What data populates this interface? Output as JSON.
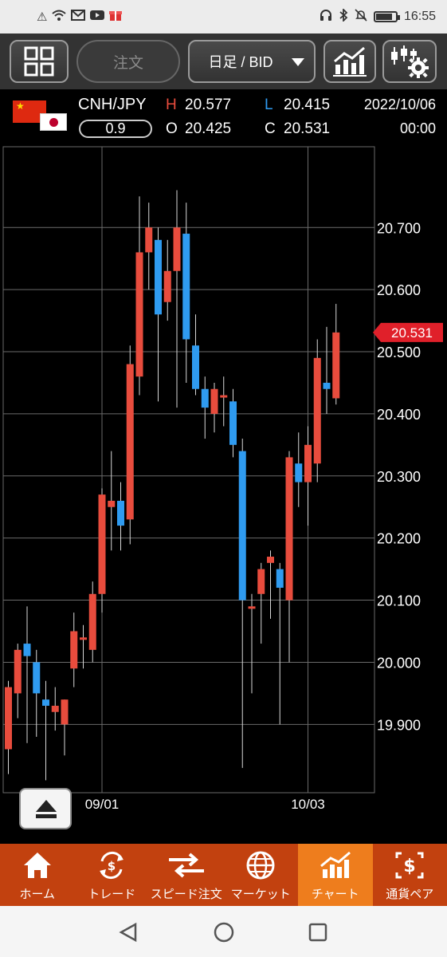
{
  "status_bar": {
    "time": "16:55",
    "left_icons": [
      "alert-icon",
      "wifi-icon",
      "gmail-icon",
      "youtube-icon",
      "gift-icon"
    ],
    "right_icons": [
      "headset-icon",
      "bluetooth-icon",
      "mute-icon",
      "battery-icon"
    ]
  },
  "toolbar": {
    "order_label": "注文",
    "timeframe_label": "日足 / BID"
  },
  "quote": {
    "pair": "CNH/JPY",
    "spread": "0.9",
    "high_label": "H",
    "high": "20.577",
    "low_label": "L",
    "low": "20.415",
    "open_label": "O",
    "open": "20.425",
    "close_label": "C",
    "close": "20.531",
    "date": "2022/10/06",
    "time": "00:00"
  },
  "colors": {
    "up": "#e84c3d",
    "down": "#2f9bf0",
    "wick": "#d8d8d8",
    "grid": "#6a6a6a",
    "price_tag": "#e0202a",
    "nav_bg": "#c2410f",
    "nav_active": "#ee7d1d"
  },
  "chart_data": {
    "type": "candlestick",
    "ylim": [
      19.79,
      20.83
    ],
    "y_ticks": [
      19.9,
      20.0,
      20.1,
      20.2,
      20.3,
      20.4,
      20.5,
      20.6,
      20.7
    ],
    "y_tick_labels": [
      "19.900",
      "20.000",
      "20.100",
      "20.200",
      "20.300",
      "20.400",
      "20.500",
      "20.600",
      "20.700"
    ],
    "x_labels": [
      {
        "label": "09/01",
        "index": 10
      },
      {
        "label": "10/03",
        "index": 32
      }
    ],
    "current_price": "20.531",
    "current_value": 20.531,
    "candles": [
      {
        "o": 19.86,
        "h": 19.97,
        "l": 19.82,
        "c": 19.96
      },
      {
        "o": 19.95,
        "h": 20.03,
        "l": 19.91,
        "c": 20.02
      },
      {
        "o": 20.03,
        "h": 20.09,
        "l": 19.87,
        "c": 20.01
      },
      {
        "o": 20.0,
        "h": 20.02,
        "l": 19.88,
        "c": 19.95
      },
      {
        "o": 19.94,
        "h": 19.97,
        "l": 19.81,
        "c": 19.93
      },
      {
        "o": 19.92,
        "h": 19.96,
        "l": 19.89,
        "c": 19.93
      },
      {
        "o": 19.9,
        "h": 19.94,
        "l": 19.85,
        "c": 19.94
      },
      {
        "o": 19.99,
        "h": 20.08,
        "l": 19.96,
        "c": 20.05
      },
      {
        "o": 20.04,
        "h": 20.06,
        "l": 19.99,
        "c": 20.04
      },
      {
        "o": 20.02,
        "h": 20.13,
        "l": 20.0,
        "c": 20.11
      },
      {
        "o": 20.11,
        "h": 20.28,
        "l": 20.08,
        "c": 20.27
      },
      {
        "o": 20.25,
        "h": 20.34,
        "l": 20.18,
        "c": 20.26
      },
      {
        "o": 20.26,
        "h": 20.29,
        "l": 20.18,
        "c": 20.22
      },
      {
        "o": 20.23,
        "h": 20.51,
        "l": 20.19,
        "c": 20.48
      },
      {
        "o": 20.46,
        "h": 20.75,
        "l": 20.43,
        "c": 20.66
      },
      {
        "o": 20.66,
        "h": 20.74,
        "l": 20.6,
        "c": 20.7
      },
      {
        "o": 20.68,
        "h": 20.7,
        "l": 20.42,
        "c": 20.56
      },
      {
        "o": 20.58,
        "h": 20.68,
        "l": 20.55,
        "c": 20.63
      },
      {
        "o": 20.63,
        "h": 20.76,
        "l": 20.41,
        "c": 20.7
      },
      {
        "o": 20.69,
        "h": 20.74,
        "l": 20.45,
        "c": 20.52
      },
      {
        "o": 20.51,
        "h": 20.56,
        "l": 20.43,
        "c": 20.44
      },
      {
        "o": 20.44,
        "h": 20.46,
        "l": 20.36,
        "c": 20.41
      },
      {
        "o": 20.4,
        "h": 20.45,
        "l": 20.37,
        "c": 20.44
      },
      {
        "o": 20.43,
        "h": 20.46,
        "l": 20.38,
        "c": 20.43
      },
      {
        "o": 20.42,
        "h": 20.44,
        "l": 20.33,
        "c": 20.35
      },
      {
        "o": 20.34,
        "h": 20.36,
        "l": 19.83,
        "c": 20.1
      },
      {
        "o": 20.09,
        "h": 20.11,
        "l": 19.95,
        "c": 20.09
      },
      {
        "o": 20.11,
        "h": 20.16,
        "l": 20.03,
        "c": 20.15
      },
      {
        "o": 20.16,
        "h": 20.18,
        "l": 20.07,
        "c": 20.17
      },
      {
        "o": 20.15,
        "h": 20.16,
        "l": 19.9,
        "c": 20.12
      },
      {
        "o": 20.1,
        "h": 20.34,
        "l": 20.0,
        "c": 20.33
      },
      {
        "o": 20.32,
        "h": 20.37,
        "l": 20.25,
        "c": 20.29
      },
      {
        "o": 20.29,
        "h": 20.38,
        "l": 20.22,
        "c": 20.35
      },
      {
        "o": 20.32,
        "h": 20.52,
        "l": 20.29,
        "c": 20.49
      },
      {
        "o": 20.45,
        "h": 20.54,
        "l": 20.4,
        "c": 20.44
      },
      {
        "o": 20.425,
        "h": 20.577,
        "l": 20.415,
        "c": 20.531
      }
    ]
  },
  "nav": [
    {
      "label": "ホーム",
      "icon": "home-icon",
      "active": false
    },
    {
      "label": "トレード",
      "icon": "trade-icon",
      "active": false
    },
    {
      "label": "スピード注文",
      "icon": "speed-order-icon",
      "active": false
    },
    {
      "label": "マーケット",
      "icon": "globe-icon",
      "active": false
    },
    {
      "label": "チャート",
      "icon": "chart-icon",
      "active": true
    },
    {
      "label": "通貨ペア",
      "icon": "currency-pair-icon",
      "active": false
    }
  ]
}
